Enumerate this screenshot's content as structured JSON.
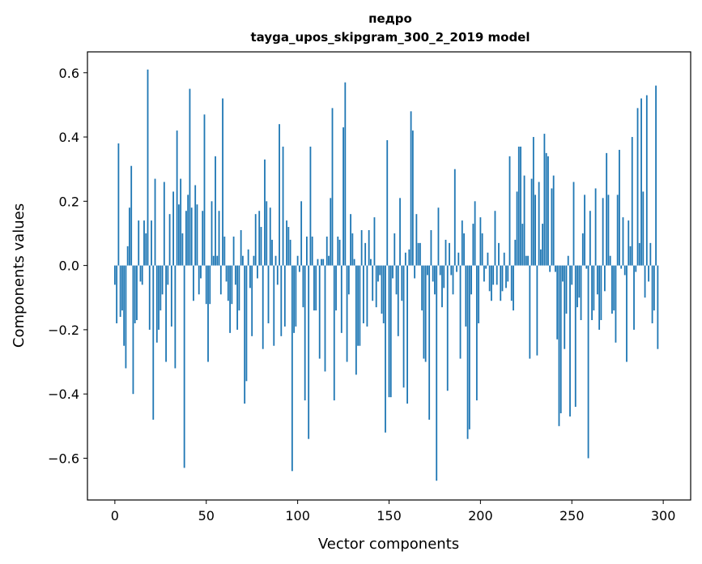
{
  "chart_data": {
    "type": "bar",
    "title_line1": "педро",
    "title_line2": "tayga_upos_skipgram_300_2_2019 model",
    "xlabel": "Vector components",
    "ylabel": "Components values",
    "xlim": [
      -15,
      315
    ],
    "ylim": [
      -0.73,
      0.665
    ],
    "xticks": [
      0,
      50,
      100,
      150,
      200,
      250,
      300
    ],
    "xtick_labels": [
      "0",
      "50",
      "100",
      "150",
      "200",
      "250",
      "300"
    ],
    "yticks": [
      -0.6,
      -0.4,
      -0.2,
      0.0,
      0.2,
      0.4,
      0.6
    ],
    "ytick_labels": [
      "−0.6",
      "−0.4",
      "−0.2",
      "0.0",
      "0.2",
      "0.4",
      "0.6"
    ],
    "bar_color": "#1f77b4",
    "values": [
      -0.06,
      -0.18,
      0.38,
      -0.16,
      -0.14,
      -0.25,
      -0.32,
      0.06,
      0.18,
      0.31,
      -0.4,
      -0.18,
      -0.17,
      0.14,
      -0.05,
      -0.06,
      0.14,
      0.1,
      0.61,
      -0.2,
      0.14,
      -0.48,
      0.27,
      -0.24,
      -0.2,
      -0.14,
      -0.09,
      0.26,
      -0.3,
      -0.06,
      0.16,
      -0.19,
      0.23,
      -0.32,
      0.42,
      0.19,
      0.27,
      0.1,
      -0.63,
      0.17,
      0.22,
      0.55,
      0.18,
      -0.11,
      0.25,
      0.19,
      -0.09,
      -0.04,
      0.17,
      0.47,
      -0.12,
      -0.3,
      -0.12,
      0.2,
      0.03,
      0.34,
      0.03,
      0.17,
      -0.09,
      0.52,
      0.09,
      -0.05,
      -0.11,
      -0.21,
      -0.12,
      0.09,
      -0.06,
      -0.2,
      -0.14,
      0.11,
      0.03,
      -0.43,
      -0.36,
      0.05,
      -0.07,
      -0.22,
      0.03,
      0.16,
      -0.04,
      0.17,
      0.12,
      -0.26,
      0.33,
      0.2,
      -0.18,
      0.18,
      0.08,
      -0.25,
      0.03,
      -0.06,
      0.44,
      -0.22,
      0.37,
      -0.19,
      0.14,
      0.12,
      0.08,
      -0.64,
      -0.21,
      -0.19,
      0.03,
      -0.02,
      0.2,
      -0.13,
      -0.42,
      0.09,
      -0.54,
      0.37,
      0.09,
      -0.14,
      -0.14,
      0.02,
      -0.29,
      0.02,
      0.02,
      -0.33,
      0.09,
      0.03,
      0.21,
      0.49,
      -0.42,
      -0.14,
      0.09,
      0.08,
      -0.21,
      0.43,
      0.57,
      -0.3,
      -0.09,
      0.16,
      0.1,
      0.02,
      -0.34,
      -0.25,
      -0.25,
      0.11,
      -0.18,
      0.07,
      -0.19,
      0.11,
      0.02,
      -0.11,
      0.15,
      -0.13,
      -0.05,
      -0.03,
      -0.15,
      -0.18,
      -0.52,
      0.39,
      -0.41,
      -0.41,
      -0.04,
      0.1,
      -0.09,
      -0.22,
      0.21,
      -0.11,
      -0.38,
      0.04,
      -0.43,
      0.05,
      0.48,
      0.42,
      -0.04,
      0.16,
      0.07,
      0.07,
      -0.14,
      -0.29,
      -0.3,
      -0.03,
      -0.48,
      0.11,
      -0.05,
      -0.09,
      -0.67,
      0.18,
      -0.03,
      -0.13,
      -0.07,
      0.08,
      -0.39,
      0.07,
      -0.03,
      -0.09,
      0.3,
      -0.02,
      0.04,
      -0.29,
      0.14,
      0.1,
      -0.19,
      -0.54,
      -0.51,
      -0.09,
      0.13,
      0.2,
      -0.42,
      -0.18,
      0.15,
      0.1,
      -0.05,
      -0.01,
      0.04,
      -0.08,
      -0.11,
      -0.06,
      0.17,
      -0.06,
      0.07,
      -0.11,
      -0.08,
      0.04,
      -0.07,
      -0.05,
      0.34,
      -0.11,
      -0.14,
      0.08,
      0.23,
      0.37,
      0.37,
      0.13,
      0.28,
      0.03,
      0.03,
      -0.29,
      0.27,
      0.4,
      0.22,
      -0.28,
      0.26,
      0.05,
      0.13,
      0.41,
      0.35,
      0.34,
      -0.02,
      0.24,
      0.28,
      -0.02,
      -0.23,
      -0.5,
      -0.46,
      -0.05,
      -0.26,
      -0.15,
      0.03,
      -0.47,
      -0.06,
      0.26,
      -0.44,
      -0.13,
      -0.1,
      -0.17,
      0.1,
      0.22,
      -0.01,
      -0.6,
      0.17,
      -0.17,
      -0.14,
      0.24,
      -0.09,
      -0.2,
      -0.17,
      0.21,
      -0.08,
      0.35,
      0.22,
      0.03,
      -0.15,
      -0.14,
      -0.24,
      0.22,
      0.36,
      -0.01,
      0.15,
      -0.03,
      -0.3,
      0.14,
      0.06,
      0.4,
      -0.2,
      -0.02,
      0.49,
      0.07,
      0.52,
      0.23,
      -0.1,
      0.53,
      -0.05,
      0.07,
      -0.18,
      -0.14,
      0.56,
      -0.26
    ]
  }
}
